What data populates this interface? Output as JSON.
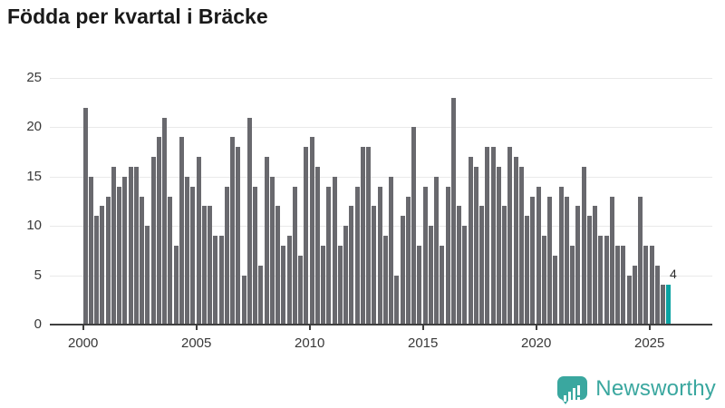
{
  "title": "Födda per kvartal i Bräcke",
  "chart_data": {
    "type": "bar",
    "x_unit": "quarter",
    "start_year": 2000,
    "values": [
      22,
      15,
      11,
      12,
      13,
      16,
      14,
      15,
      16,
      16,
      13,
      10,
      17,
      19,
      21,
      13,
      8,
      19,
      15,
      14,
      17,
      12,
      12,
      9,
      9,
      14,
      19,
      18,
      5,
      21,
      14,
      6,
      17,
      15,
      12,
      8,
      9,
      14,
      7,
      18,
      19,
      16,
      8,
      14,
      15,
      8,
      10,
      12,
      14,
      18,
      18,
      12,
      14,
      9,
      15,
      5,
      11,
      13,
      20,
      8,
      14,
      10,
      15,
      8,
      14,
      23,
      12,
      10,
      17,
      16,
      12,
      18,
      18,
      16,
      12,
      18,
      17,
      16,
      11,
      13,
      14,
      9,
      13,
      7,
      14,
      13,
      8,
      12,
      16,
      11,
      12,
      9,
      9,
      13,
      8,
      8,
      5,
      6,
      13,
      8,
      8,
      6,
      4,
      4
    ],
    "yticks": [
      0,
      5,
      10,
      15,
      20,
      25
    ],
    "xticks": [
      2000,
      2005,
      2010,
      2015,
      2020,
      2025
    ],
    "ylim": [
      0,
      25
    ],
    "grid": true,
    "legend": "none",
    "bar_color": "#69696e",
    "highlight_color": "#0ba3a3",
    "highlight_last": true,
    "last_value_label": "4"
  },
  "footer": {
    "brand": "Newsworthy",
    "brand_color": "#3aa79f",
    "logo_icon": "speech-bubble-bar-chart-icon"
  }
}
